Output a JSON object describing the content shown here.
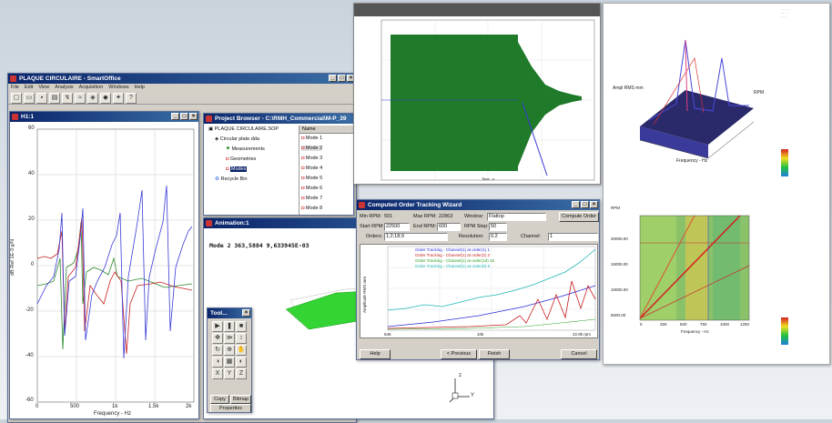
{
  "smartoffice": {
    "title": "PLAQUE CIRCULAIRE - SmartOffice",
    "menu": [
      "File",
      "Edit",
      "View",
      "Analysis",
      "Acquisition",
      "Windows",
      "Help"
    ]
  },
  "frf": {
    "title": "H1:1",
    "y_label": "dB Ref 1E-3 g/N",
    "x_label": "Frequency - Hz",
    "y_ticks": [
      "60",
      "40",
      "20",
      "0",
      "-20",
      "-40",
      "-60"
    ],
    "x_ticks": [
      "0",
      "500",
      "1k",
      "1.5k",
      "2k"
    ]
  },
  "browser": {
    "title": "Project Browser - C:\\RMH_Commercial\\M-P_39",
    "root": "PLAQUE CIRCULAIRE.SOP",
    "plate": "Circular plate.dda",
    "measurements": "Measurements",
    "geometries": "Geometries",
    "modes": "Modes",
    "recycle": "Recycle Bin",
    "list_header": "Name",
    "mode_list": [
      "Mode 1",
      "Mode 2",
      "Mode 3",
      "Mode 4",
      "Mode 5",
      "Mode 6",
      "Mode 7",
      "Mode 8"
    ]
  },
  "animation": {
    "title": "Animation:1",
    "readout": "Mode 2  363,5884  9,633945E-03",
    "axis_z": "z",
    "axis_y": "Y"
  },
  "toolbox": {
    "title": "Tool...",
    "btn_copy": "Copy",
    "btn_bitmap": "Bitmap",
    "btn_properties": "Properties",
    "axis_x": "X",
    "axis_y": "Y",
    "axis_z": "Z"
  },
  "wizard": {
    "title": "Computed Order Tracking Wizard",
    "min_rpm_label": "Min RPM:",
    "min_rpm": "501",
    "max_rpm_label": "Max RPM:",
    "max_rpm": "22863",
    "window_label": "Window:",
    "window_value": "Flattop",
    "start_rpm_label": "Start RPM:",
    "start_rpm": "22500",
    "end_rpm_label": "End RPM:",
    "end_rpm": "600",
    "rpm_step_label": "RPM Step:",
    "rpm_step": "50",
    "orders_label": "Orders:",
    "orders": "1;2;18;9",
    "resolution_label": "Resolution:",
    "resolution": "0.2",
    "channel_label": "Channel:",
    "channel": "1",
    "compute_btn": "Compute Order",
    "legend": [
      {
        "label": "Order Tracking - Channel(1) at order(1) 1",
        "color": "#2a2ad8"
      },
      {
        "label": "Order Tracking - Channel(1) at order(2) 2",
        "color": "#c81e1e"
      },
      {
        "label": "Order Tracking - Channel(1) at order(18) 18",
        "color": "#2ca02c"
      },
      {
        "label": "Order Tracking - Channel(1) at order(9) 9",
        "color": "#1fb5b5"
      }
    ],
    "y_label": "Amplitude RMS mm",
    "x_ticks": [
      "546",
      "10k",
      "22.9k rpm"
    ],
    "help_btn": "Help",
    "prev_btn": "< Previous",
    "finish_btn": "Finish",
    "cancel_btn": "Cancel"
  },
  "time_plot": {
    "x_label": "Time - s"
  },
  "waterfall": {
    "x_label": "Frequency - Hz",
    "y_label": "RPM",
    "z_label": "Ampl RMS mm"
  },
  "colormap": {
    "y_label": "RPM",
    "x_label": "Frequency - Hz",
    "y_ticks": [
      "20000.00",
      "15000.00",
      "10000.00",
      "5000.00"
    ],
    "x_ticks": [
      "0",
      "250",
      "500",
      "750",
      "1000",
      "1250"
    ]
  },
  "colors": {
    "titlebar": "#0a246a",
    "signal": "#1f7a2a",
    "plate": "#22cc22"
  }
}
